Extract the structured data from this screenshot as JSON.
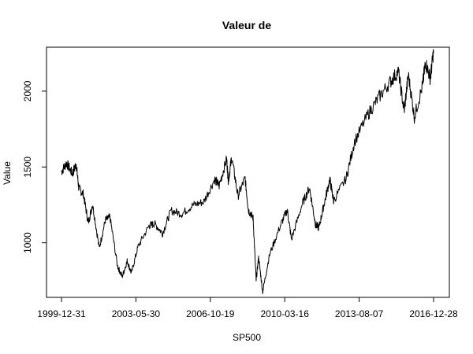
{
  "chart_data": {
    "type": "line",
    "title": "Valeur de",
    "xlabel": "SP500",
    "ylabel": "Value",
    "x_tick_labels": [
      "1999-12-31",
      "2003-05-30",
      "2006-10-19",
      "2010-03-16",
      "2013-08-07",
      "2016-12-28"
    ],
    "y_tick_labels": [
      "1000",
      "1500",
      "2000"
    ],
    "y_ticks": [
      1000,
      1500,
      2000
    ],
    "x_range": [
      "1999-12-31",
      "2016-12-28"
    ],
    "ylim": [
      640,
      2290
    ],
    "grid": false,
    "legend": "none",
    "line_color": "#000000",
    "series": [
      {
        "x": [
          "1999-12-31",
          "2000-03-24",
          "2000-06-30",
          "2000-09-01",
          "2000-10-15",
          "2000-12-31",
          "2001-03-22",
          "2001-06-01",
          "2001-09-21",
          "2001-12-31",
          "2002-03-19",
          "2002-07-23",
          "2002-10-09",
          "2002-12-31",
          "2003-03-11",
          "2003-06-30",
          "2003-12-31",
          "2004-03-31",
          "2004-08-12",
          "2004-12-31",
          "2005-06-30",
          "2005-12-31",
          "2006-06-30",
          "2006-12-29",
          "2007-03-14",
          "2007-07-16",
          "2007-08-15",
          "2007-10-09",
          "2008-01-22",
          "2008-05-19",
          "2008-07-15",
          "2008-09-30",
          "2008-11-20",
          "2008-12-31",
          "2009-03-09",
          "2009-06-30",
          "2009-12-31",
          "2010-04-23",
          "2010-07-02",
          "2010-12-31",
          "2011-04-29",
          "2011-08-08",
          "2011-10-03",
          "2011-12-30",
          "2012-04-02",
          "2012-06-04",
          "2012-12-31",
          "2013-05-21",
          "2013-12-31",
          "2014-06-30",
          "2014-12-31",
          "2015-05-21",
          "2015-08-25",
          "2015-11-03",
          "2016-02-11",
          "2016-06-27",
          "2016-08-15",
          "2016-11-04",
          "2016-12-28"
        ],
        "values": [
          1469,
          1527,
          1455,
          1520,
          1360,
          1320,
          1130,
          1255,
          965,
          1148,
          1170,
          845,
          777,
          880,
          800,
          975,
          1112,
          1126,
          1063,
          1212,
          1191,
          1248,
          1270,
          1418,
          1377,
          1553,
          1407,
          1565,
          1310,
          1426,
          1214,
          1166,
          752,
          903,
          677,
          919,
          1115,
          1217,
          1022,
          1258,
          1364,
          1120,
          1099,
          1258,
          1419,
          1278,
          1426,
          1669,
          1848,
          1960,
          2059,
          2131,
          1868,
          2109,
          1829,
          2037,
          2190,
          2085,
          2268
        ]
      }
    ]
  }
}
